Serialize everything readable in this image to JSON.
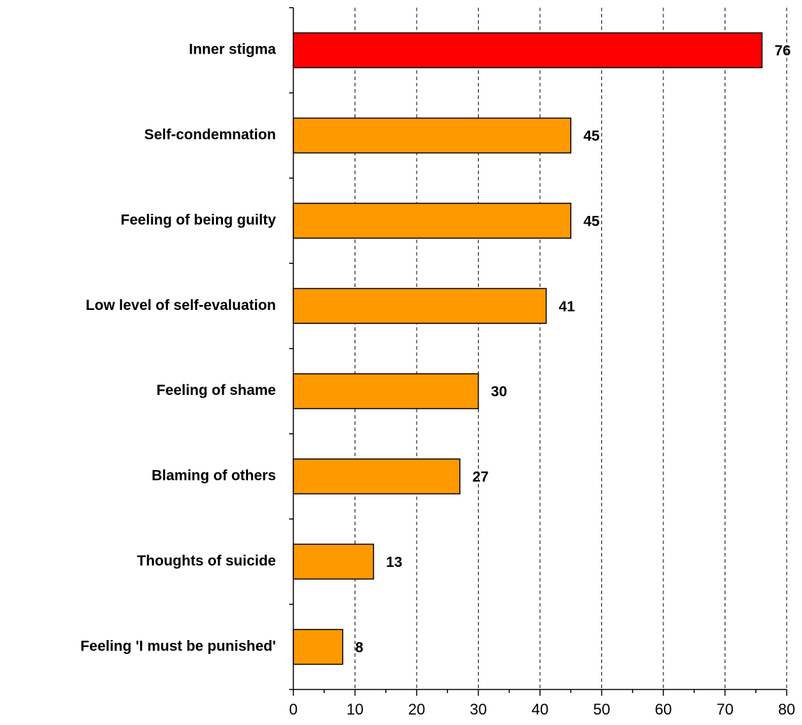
{
  "chart_data": {
    "type": "bar",
    "orientation": "horizontal",
    "categories": [
      "Inner stigma",
      "Self-condemnation",
      "Feeling of being guilty",
      "Low level of self-evaluation",
      "Feeling of shame",
      "Blaming of others",
      "Thoughts of suicide",
      "Feeling 'I must be punished'"
    ],
    "values": [
      76,
      45,
      45,
      41,
      30,
      27,
      13,
      8
    ],
    "colors": [
      "#ff0000",
      "#ff9900",
      "#ff9900",
      "#ff9900",
      "#ff9900",
      "#ff9900",
      "#ff9900",
      "#ff9900"
    ],
    "xlim": [
      0,
      80
    ],
    "xticks": [
      0,
      10,
      20,
      30,
      40,
      50,
      60,
      70,
      80
    ],
    "xminorticks": [
      5,
      15,
      25,
      35,
      45,
      55,
      65,
      75
    ],
    "grid": true
  }
}
